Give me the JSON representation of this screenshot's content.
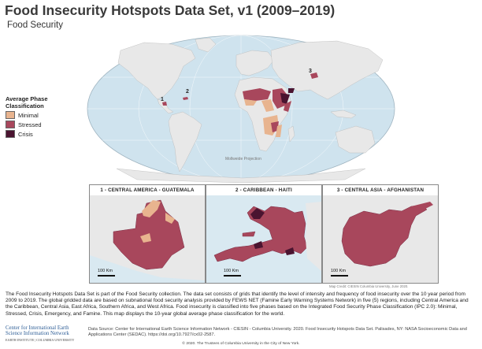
{
  "title": "Food Insecurity Hotspots Data Set, v1 (2009–2019)",
  "subtitle": "Food Security",
  "legend": {
    "title_line1": "Average Phase",
    "title_line2": "Classification",
    "items": [
      {
        "label": "Minimal",
        "color": "#e8b48f"
      },
      {
        "label": "Stressed",
        "color": "#a8475c"
      },
      {
        "label": "Crisis",
        "color": "#4a1430"
      }
    ]
  },
  "map": {
    "projection_label": "Mollweide Projection",
    "ocean_color": "#cfe3ee",
    "land_color": "#e8e8e8",
    "markers": [
      "1",
      "2",
      "3"
    ]
  },
  "insets": [
    {
      "heading": "1 - CENTRAL AMERICA - GUATEMALA",
      "scale": "100 Km"
    },
    {
      "heading": "2 - CARIBBEAN - HAITI",
      "scale": "100 Km"
    },
    {
      "heading": "3 - CENTRAL ASIA - AFGHANISTAN",
      "scale": "100 Km"
    }
  ],
  "map_credit": "Map Credit: CIESIN Columbia University, June 2020.",
  "description": "The Food Insecurity Hotspots Data Set is part of the Food Security collection. The data set consists of grids that identify the level of intensity and frequency of food insecurity over the 10 year period from 2009 to 2019. The global gridded data are based on subnational food security analysis provided by FEWS NET (Famine Early Warning Systems Network) in five (5) regions, including Central America and the Caribbean, Central Asia, East Africa, Southern Africa, and West Africa. Food insecurity is classified into five phases based on the Integrated Food Security Phase Classification (IPC 2.0): Minimal, Stressed, Crisis, Emergency, and Famine. This map displays the 10-year global average phase classification for the world.",
  "footer": {
    "logo_line1": "Center for International Earth",
    "logo_line2": "Science Information Network",
    "logo_line3": "EARTH INSTITUTE | COLUMBIA UNIVERSITY",
    "source": "Data Source: Center for International Earth Science Information Network - CIESIN - Columbia University. 2020. Food Insecurity Hotspots Data Set. Palisades, NY: NASA Socioeconomic Data and Applications Center (SEDAC). https://doi.org/10.7927/cx02-2587.",
    "copyright": "© 2020. The Trustees of Columbia University in the City of New York."
  }
}
